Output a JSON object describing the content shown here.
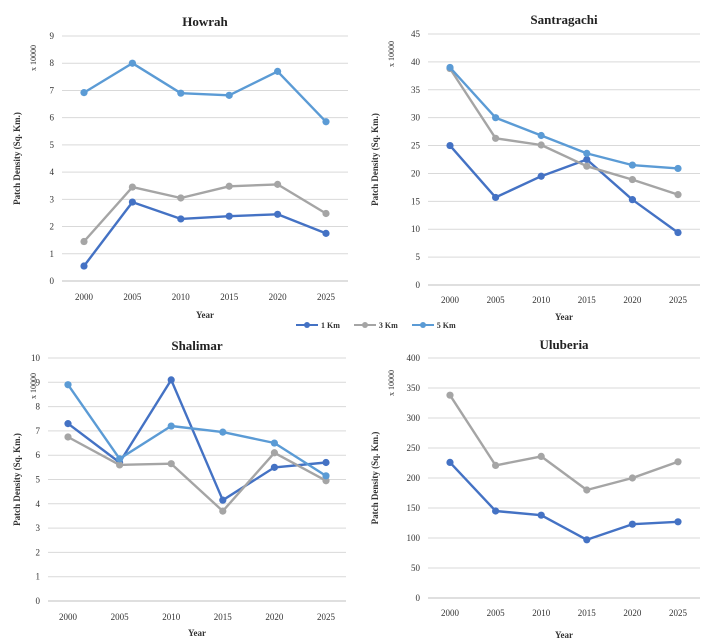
{
  "series_colors": [
    "#4472c4",
    "#a5a5a5",
    "#5b9bd5"
  ],
  "legend": [
    "1 Km",
    "3 Km",
    "5 Km"
  ],
  "chart_data": [
    {
      "type": "line",
      "title": "Howrah",
      "xlabel": "Year",
      "ylabel": "Patch Density (Sq. Km.)",
      "multiplier": "x 10000",
      "categories": [
        "2000",
        "2005",
        "2010",
        "2015",
        "2020",
        "2025"
      ],
      "ylim": [
        0,
        9
      ],
      "yticks": [
        0,
        1,
        2,
        3,
        4,
        5,
        6,
        7,
        8,
        9
      ],
      "series": [
        {
          "name": "1 Km",
          "values": [
            0.55,
            2.9,
            2.28,
            2.38,
            2.45,
            1.75
          ]
        },
        {
          "name": "3 Km",
          "values": [
            1.45,
            3.45,
            3.05,
            3.48,
            3.55,
            2.48
          ]
        },
        {
          "name": "5 Km",
          "values": [
            6.92,
            8.0,
            6.9,
            6.82,
            7.7,
            5.85
          ]
        }
      ]
    },
    {
      "type": "line",
      "title": "Santragachi",
      "xlabel": "Year",
      "ylabel": "Patch Density (Sq. Km.)",
      "multiplier": "x 10000",
      "categories": [
        "2000",
        "2005",
        "2010",
        "2015",
        "2020",
        "2025"
      ],
      "ylim": [
        0,
        45
      ],
      "yticks": [
        0,
        5,
        10,
        15,
        20,
        25,
        30,
        35,
        40,
        45
      ],
      "series": [
        {
          "name": "1 Km",
          "values": [
            25.0,
            15.7,
            19.5,
            22.5,
            15.3,
            9.4
          ]
        },
        {
          "name": "3 Km",
          "values": [
            38.8,
            26.3,
            25.1,
            21.3,
            18.9,
            16.2
          ]
        },
        {
          "name": "5 Km",
          "values": [
            39.0,
            30.0,
            26.8,
            23.6,
            21.5,
            20.9
          ]
        }
      ]
    },
    {
      "type": "line",
      "title": "Shalimar",
      "xlabel": "Year",
      "ylabel": "Patch Density (Sq. Km.)",
      "multiplier": "x 10000",
      "categories": [
        "2000",
        "2005",
        "2010",
        "2015",
        "2020",
        "2025"
      ],
      "ylim": [
        0,
        10
      ],
      "yticks": [
        0,
        1,
        2,
        3,
        4,
        5,
        6,
        7,
        8,
        9,
        10
      ],
      "series": [
        {
          "name": "1 Km",
          "values": [
            7.3,
            5.7,
            9.1,
            4.15,
            5.5,
            5.7
          ]
        },
        {
          "name": "3 Km",
          "values": [
            6.75,
            5.6,
            5.65,
            3.7,
            6.1,
            4.95
          ]
        },
        {
          "name": "5 Km",
          "values": [
            8.9,
            5.85,
            7.2,
            6.95,
            6.5,
            5.15
          ]
        }
      ]
    },
    {
      "type": "line",
      "title": "Uluberia",
      "xlabel": "Year",
      "ylabel": "Patch Density (Sq. Km.)",
      "multiplier": "x 10000",
      "categories": [
        "2000",
        "2005",
        "2010",
        "2015",
        "2020",
        "2025"
      ],
      "ylim": [
        0,
        400
      ],
      "yticks": [
        0,
        50,
        100,
        150,
        200,
        250,
        300,
        350,
        400
      ],
      "series": [
        {
          "name": "1 Km",
          "values": [
            226,
            145,
            138,
            97,
            123,
            127
          ]
        },
        {
          "name": "3 Km",
          "values": [
            338,
            221,
            236,
            180,
            200,
            227
          ]
        }
      ]
    }
  ]
}
